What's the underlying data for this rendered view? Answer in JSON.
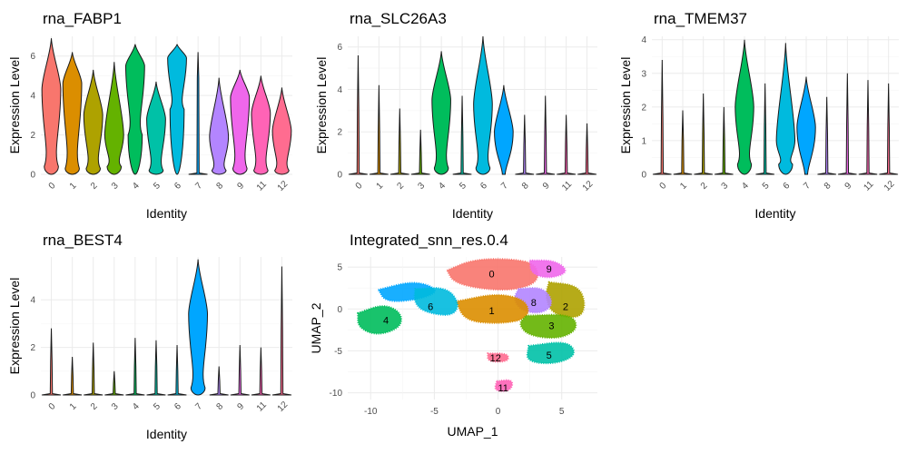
{
  "colors": {
    "0": "#F8766D",
    "1": "#DB8E00",
    "2": "#AEA200",
    "3": "#64B200",
    "4": "#00BD5C",
    "5": "#00C1A7",
    "6": "#00BADE",
    "7": "#00A6FF",
    "8": "#B385FF",
    "9": "#EF67EB",
    "11": "#FF63B6",
    "12": "#FF6C90"
  },
  "chart_data": [
    {
      "type": "violin",
      "title": "rna_FABP1",
      "xlabel": "Identity",
      "ylabel": "Expression Level",
      "categories": [
        "0",
        "1",
        "2",
        "3",
        "4",
        "5",
        "6",
        "7",
        "8",
        "9",
        "11",
        "12"
      ],
      "ylim": [
        0,
        7
      ],
      "yticks": [
        0,
        2,
        4,
        6
      ],
      "series": [
        {
          "values": [
            {
              "max": 6.9,
              "mode": 4.3,
              "low": 0.4
            },
            {
              "max": 6.2,
              "mode": 4.6,
              "low": 0.3
            },
            {
              "max": 5.3,
              "mode": 3.0,
              "low": 0.3
            },
            {
              "max": 5.7,
              "mode": 2.0,
              "low": 0.4
            },
            {
              "max": 6.6,
              "mode": 5.5,
              "low": 2.0
            },
            {
              "max": 4.7,
              "mode": 2.8,
              "low": 0.2
            },
            {
              "max": 6.6,
              "mode": 5.9,
              "low": 3.3
            },
            {
              "max": 6.2,
              "mode": 4.9,
              "low": 0.0
            },
            {
              "max": 4.9,
              "mode": 1.9,
              "low": 0.2
            },
            {
              "max": 5.3,
              "mode": 3.9,
              "low": 0.3
            },
            {
              "max": 5.0,
              "mode": 3.1,
              "low": 0.2
            },
            {
              "max": 4.4,
              "mode": 2.2,
              "low": 0.2
            }
          ]
        }
      ]
    },
    {
      "type": "violin",
      "title": "rna_SLC26A3",
      "xlabel": "Identity",
      "ylabel": "Expression Level",
      "categories": [
        "0",
        "1",
        "2",
        "3",
        "4",
        "5",
        "6",
        "7",
        "8",
        "9",
        "11",
        "12"
      ],
      "ylim": [
        0,
        6.5
      ],
      "yticks": [
        0,
        2,
        4,
        6
      ],
      "series": [
        {
          "values": [
            {
              "max": 5.6,
              "mode": 3.0,
              "low": 0.0
            },
            {
              "max": 4.2,
              "mode": 2.0,
              "low": 0.0
            },
            {
              "max": 3.1,
              "mode": 1.5,
              "low": 0.0
            },
            {
              "max": 2.1,
              "mode": 1.0,
              "low": 0.0
            },
            {
              "max": 5.8,
              "mode": 3.5,
              "low": 0.3
            },
            {
              "max": 3.7,
              "mode": 1.8,
              "low": 0.0
            },
            {
              "max": 6.5,
              "mode": 3.3,
              "low": 0.3
            },
            {
              "max": 4.2,
              "mode": 2.0,
              "low": 0.0
            },
            {
              "max": 2.8,
              "mode": 1.4,
              "low": 0.0
            },
            {
              "max": 3.7,
              "mode": 1.8,
              "low": 0.0
            },
            {
              "max": 2.8,
              "mode": 1.4,
              "low": 0.0
            },
            {
              "max": 2.4,
              "mode": 1.2,
              "low": 0.0
            }
          ]
        }
      ]
    },
    {
      "type": "violin",
      "title": "rna_TMEM37",
      "xlabel": "Identity",
      "ylabel": "Expression Level",
      "categories": [
        "0",
        "1",
        "2",
        "3",
        "4",
        "5",
        "6",
        "7",
        "8",
        "9",
        "11",
        "12"
      ],
      "ylim": [
        0,
        4.1
      ],
      "yticks": [
        0,
        1,
        2,
        3,
        4
      ],
      "series": [
        {
          "values": [
            {
              "max": 3.4,
              "mode": 1.7,
              "low": 0.0
            },
            {
              "max": 1.9,
              "mode": 1.0,
              "low": 0.0
            },
            {
              "max": 2.4,
              "mode": 1.2,
              "low": 0.0
            },
            {
              "max": 2.0,
              "mode": 1.0,
              "low": 0.0
            },
            {
              "max": 4.0,
              "mode": 2.0,
              "low": 0.3
            },
            {
              "max": 2.7,
              "mode": 1.4,
              "low": 0.0
            },
            {
              "max": 3.9,
              "mode": 1.0,
              "low": 0.3
            },
            {
              "max": 2.9,
              "mode": 1.4,
              "low": 0.0
            },
            {
              "max": 2.3,
              "mode": 1.2,
              "low": 0.0
            },
            {
              "max": 3.0,
              "mode": 1.5,
              "low": 0.0
            },
            {
              "max": 2.8,
              "mode": 1.4,
              "low": 0.0
            },
            {
              "max": 2.7,
              "mode": 1.4,
              "low": 0.0
            }
          ]
        }
      ]
    },
    {
      "type": "violin",
      "title": "rna_BEST4",
      "xlabel": "Identity",
      "ylabel": "Expression Level",
      "categories": [
        "0",
        "1",
        "2",
        "3",
        "4",
        "5",
        "6",
        "7",
        "8",
        "9",
        "11",
        "12"
      ],
      "ylim": [
        0,
        5.8
      ],
      "yticks": [
        0,
        2,
        4
      ],
      "series": [
        {
          "values": [
            {
              "max": 2.8,
              "mode": 1.4,
              "low": 0.0
            },
            {
              "max": 1.6,
              "mode": 0.8,
              "low": 0.0
            },
            {
              "max": 2.2,
              "mode": 1.1,
              "low": 0.0
            },
            {
              "max": 1.0,
              "mode": 0.5,
              "low": 0.0
            },
            {
              "max": 2.4,
              "mode": 1.2,
              "low": 0.0
            },
            {
              "max": 2.3,
              "mode": 1.2,
              "low": 0.0
            },
            {
              "max": 2.1,
              "mode": 1.0,
              "low": 0.0
            },
            {
              "max": 5.7,
              "mode": 3.4,
              "low": 0.3
            },
            {
              "max": 1.2,
              "mode": 0.6,
              "low": 0.0
            },
            {
              "max": 2.1,
              "mode": 1.0,
              "low": 0.0
            },
            {
              "max": 2.0,
              "mode": 1.0,
              "low": 0.0
            },
            {
              "max": 5.4,
              "mode": 2.7,
              "low": 0.0
            }
          ]
        }
      ]
    },
    {
      "type": "scatter",
      "title": "Integrated_snn_res.0.4",
      "xlabel": "UMAP_1",
      "ylabel": "UMAP_2",
      "xlim": [
        -11.8,
        7.8
      ],
      "ylim": [
        -10.8,
        6.2
      ],
      "xticks": [
        -10,
        -5,
        0,
        5
      ],
      "yticks": [
        -10,
        -5,
        0,
        5
      ],
      "clusters": [
        {
          "label": "0",
          "x": -0.5,
          "y": 4.2
        },
        {
          "label": "1",
          "x": -0.5,
          "y": -0.2
        },
        {
          "label": "2",
          "x": 5.3,
          "y": 0.3
        },
        {
          "label": "3",
          "x": 4.2,
          "y": -2.0
        },
        {
          "label": "4",
          "x": -8.8,
          "y": -1.3
        },
        {
          "label": "5",
          "x": 4.0,
          "y": -5.5
        },
        {
          "label": "6",
          "x": -5.3,
          "y": 0.3
        },
        {
          "label": "8",
          "x": 2.8,
          "y": 0.8
        },
        {
          "label": "9",
          "x": 4.0,
          "y": 4.8
        },
        {
          "label": "11",
          "x": 0.4,
          "y": -9.4
        },
        {
          "label": "12",
          "x": -0.2,
          "y": -5.8
        }
      ]
    }
  ]
}
